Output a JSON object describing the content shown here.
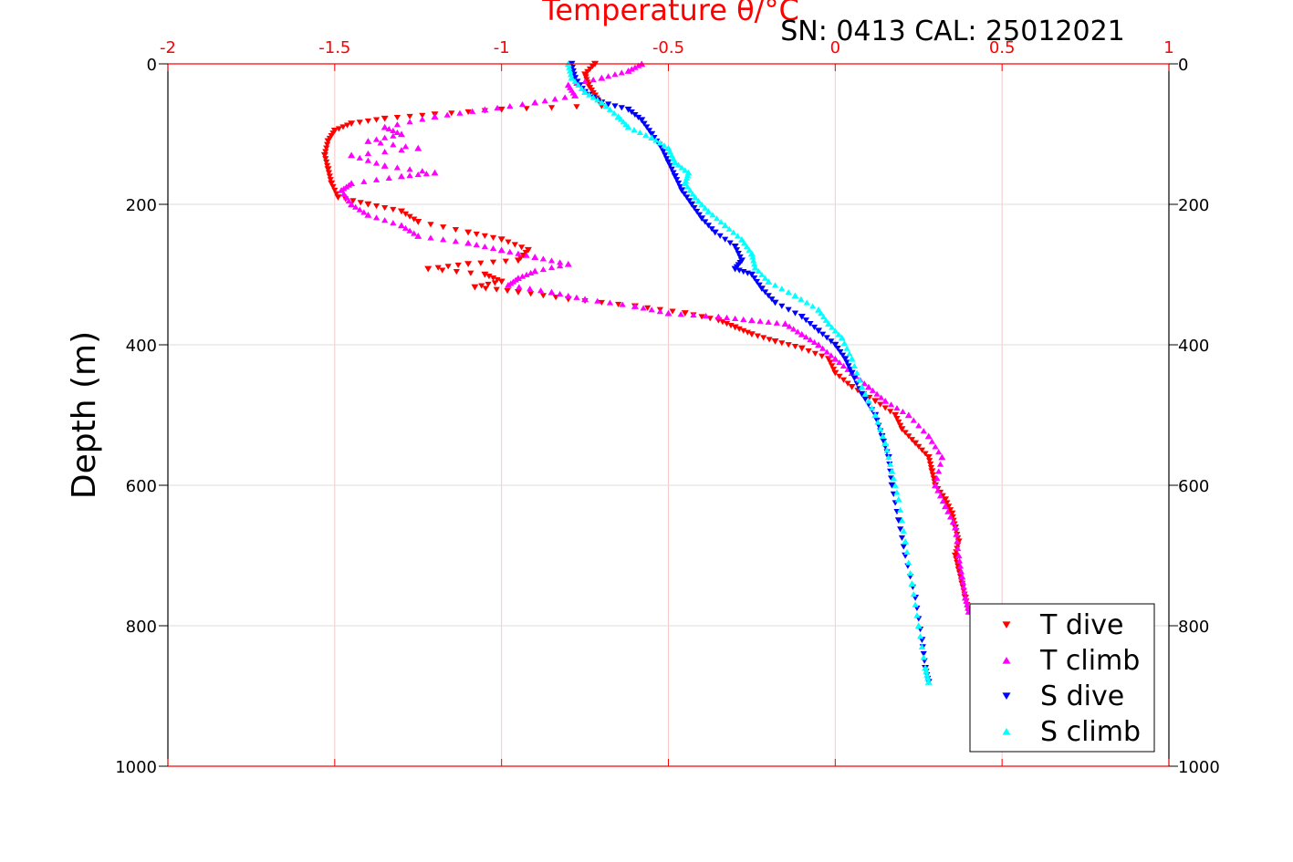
{
  "chart_data": {
    "type": "scatter",
    "title": "Temperature θ/°C",
    "title_color": "#ff0000",
    "subtitle": "SN: 0413  CAL: 25012021",
    "xlabel": "Temperature θ/°C",
    "ylabel": "Depth (m)",
    "xlim": [
      -2,
      1
    ],
    "ylim": [
      0,
      1000
    ],
    "y_reversed": true,
    "x_ticks": [
      "-2",
      "-1.5",
      "-1",
      "-0.5",
      "0",
      "0.5",
      "1"
    ],
    "x_tick_values": [
      -2,
      -1.5,
      -1,
      -0.5,
      0,
      0.5,
      1
    ],
    "y_ticks": [
      "0",
      "200",
      "400",
      "600",
      "800",
      "1000"
    ],
    "y_tick_values": [
      0,
      200,
      400,
      600,
      800,
      1000
    ],
    "x_axis_color": "#ff0000",
    "grid": true,
    "legend_position": "bottom-right",
    "series": [
      {
        "name": "T dive",
        "color": "#ff0000",
        "marker": "triangle-down",
        "points": [
          [
            -0.72,
            0
          ],
          [
            -0.75,
            15
          ],
          [
            -0.74,
            30
          ],
          [
            -0.72,
            45
          ],
          [
            -0.7,
            60
          ],
          [
            -1.0,
            65
          ],
          [
            -1.2,
            72
          ],
          [
            -1.35,
            78
          ],
          [
            -1.45,
            85
          ],
          [
            -1.5,
            95
          ],
          [
            -1.52,
            110
          ],
          [
            -1.53,
            130
          ],
          [
            -1.52,
            150
          ],
          [
            -1.51,
            170
          ],
          [
            -1.49,
            190
          ],
          [
            -1.4,
            200
          ],
          [
            -1.3,
            210
          ],
          [
            -1.25,
            225
          ],
          [
            -1.1,
            240
          ],
          [
            -1.0,
            250
          ],
          [
            -0.92,
            265
          ],
          [
            -0.95,
            280
          ],
          [
            -1.1,
            285
          ],
          [
            -1.22,
            292
          ],
          [
            -1.05,
            300
          ],
          [
            -1.0,
            310
          ],
          [
            -1.08,
            318
          ],
          [
            -0.95,
            325
          ],
          [
            -0.8,
            335
          ],
          [
            -0.6,
            345
          ],
          [
            -0.45,
            355
          ],
          [
            -0.35,
            365
          ],
          [
            -0.3,
            375
          ],
          [
            -0.25,
            385
          ],
          [
            -0.18,
            395
          ],
          [
            -0.1,
            405
          ],
          [
            -0.02,
            420
          ],
          [
            0.0,
            440
          ],
          [
            0.05,
            460
          ],
          [
            0.12,
            480
          ],
          [
            0.18,
            500
          ],
          [
            0.2,
            520
          ],
          [
            0.24,
            540
          ],
          [
            0.28,
            560
          ],
          [
            0.29,
            580
          ],
          [
            0.3,
            600
          ],
          [
            0.33,
            620
          ],
          [
            0.35,
            640
          ],
          [
            0.36,
            660
          ],
          [
            0.37,
            680
          ],
          [
            0.36,
            700
          ],
          [
            0.37,
            720
          ],
          [
            0.38,
            740
          ],
          [
            0.39,
            760
          ],
          [
            0.4,
            780
          ]
        ]
      },
      {
        "name": "T climb",
        "color": "#ff00ff",
        "marker": "triangle-up",
        "points": [
          [
            -0.58,
            0
          ],
          [
            -0.62,
            10
          ],
          [
            -0.7,
            20
          ],
          [
            -0.8,
            30
          ],
          [
            -0.78,
            45
          ],
          [
            -0.9,
            55
          ],
          [
            -1.05,
            65
          ],
          [
            -1.2,
            75
          ],
          [
            -1.35,
            90
          ],
          [
            -1.3,
            100
          ],
          [
            -1.4,
            110
          ],
          [
            -1.25,
            120
          ],
          [
            -1.45,
            130
          ],
          [
            -1.35,
            145
          ],
          [
            -1.2,
            155
          ],
          [
            -1.3,
            160
          ],
          [
            -1.45,
            170
          ],
          [
            -1.48,
            180
          ],
          [
            -1.45,
            200
          ],
          [
            -1.4,
            215
          ],
          [
            -1.3,
            230
          ],
          [
            -1.25,
            245
          ],
          [
            -1.1,
            255
          ],
          [
            -1.0,
            265
          ],
          [
            -0.9,
            275
          ],
          [
            -0.8,
            285
          ],
          [
            -0.9,
            295
          ],
          [
            -0.95,
            305
          ],
          [
            -0.98,
            315
          ],
          [
            -0.85,
            325
          ],
          [
            -0.75,
            335
          ],
          [
            -0.6,
            345
          ],
          [
            -0.5,
            355
          ],
          [
            -0.35,
            360
          ],
          [
            -0.25,
            365
          ],
          [
            -0.15,
            370
          ],
          [
            -0.1,
            385
          ],
          [
            -0.05,
            400
          ],
          [
            0.0,
            420
          ],
          [
            0.05,
            440
          ],
          [
            0.1,
            460
          ],
          [
            0.15,
            480
          ],
          [
            0.22,
            500
          ],
          [
            0.28,
            530
          ],
          [
            0.32,
            560
          ],
          [
            0.3,
            600
          ],
          [
            0.33,
            630
          ],
          [
            0.36,
            660
          ],
          [
            0.37,
            700
          ],
          [
            0.38,
            730
          ],
          [
            0.39,
            760
          ],
          [
            0.4,
            780
          ]
        ]
      },
      {
        "name": "S dive",
        "color": "#0000ff",
        "marker": "triangle-down",
        "points": [
          [
            -0.79,
            0
          ],
          [
            -0.78,
            20
          ],
          [
            -0.75,
            40
          ],
          [
            -0.7,
            55
          ],
          [
            -0.62,
            65
          ],
          [
            -0.58,
            80
          ],
          [
            -0.55,
            100
          ],
          [
            -0.52,
            120
          ],
          [
            -0.5,
            140
          ],
          [
            -0.48,
            160
          ],
          [
            -0.46,
            180
          ],
          [
            -0.43,
            200
          ],
          [
            -0.4,
            220
          ],
          [
            -0.36,
            240
          ],
          [
            -0.3,
            260
          ],
          [
            -0.28,
            280
          ],
          [
            -0.3,
            292
          ],
          [
            -0.25,
            300
          ],
          [
            -0.22,
            320
          ],
          [
            -0.18,
            340
          ],
          [
            -0.1,
            360
          ],
          [
            -0.05,
            380
          ],
          [
            0.0,
            400
          ],
          [
            0.03,
            420
          ],
          [
            0.05,
            440
          ],
          [
            0.08,
            470
          ],
          [
            0.12,
            500
          ],
          [
            0.14,
            530
          ],
          [
            0.16,
            560
          ],
          [
            0.17,
            600
          ],
          [
            0.19,
            650
          ],
          [
            0.21,
            700
          ],
          [
            0.24,
            760
          ],
          [
            0.26,
            820
          ],
          [
            0.27,
            860
          ],
          [
            0.28,
            880
          ]
        ]
      },
      {
        "name": "S climb",
        "color": "#00ffff",
        "marker": "triangle-up",
        "points": [
          [
            -0.8,
            0
          ],
          [
            -0.79,
            20
          ],
          [
            -0.75,
            40
          ],
          [
            -0.7,
            55
          ],
          [
            -0.65,
            75
          ],
          [
            -0.62,
            90
          ],
          [
            -0.55,
            105
          ],
          [
            -0.5,
            120
          ],
          [
            -0.48,
            140
          ],
          [
            -0.44,
            155
          ],
          [
            -0.45,
            170
          ],
          [
            -0.42,
            190
          ],
          [
            -0.38,
            210
          ],
          [
            -0.33,
            230
          ],
          [
            -0.28,
            250
          ],
          [
            -0.25,
            270
          ],
          [
            -0.24,
            290
          ],
          [
            -0.2,
            310
          ],
          [
            -0.12,
            330
          ],
          [
            -0.05,
            350
          ],
          [
            -0.02,
            370
          ],
          [
            0.02,
            390
          ],
          [
            0.05,
            420
          ],
          [
            0.08,
            460
          ],
          [
            0.12,
            500
          ],
          [
            0.15,
            540
          ],
          [
            0.17,
            580
          ],
          [
            0.19,
            620
          ],
          [
            0.21,
            680
          ],
          [
            0.23,
            740
          ],
          [
            0.25,
            800
          ],
          [
            0.27,
            860
          ],
          [
            0.28,
            880
          ]
        ]
      }
    ]
  }
}
